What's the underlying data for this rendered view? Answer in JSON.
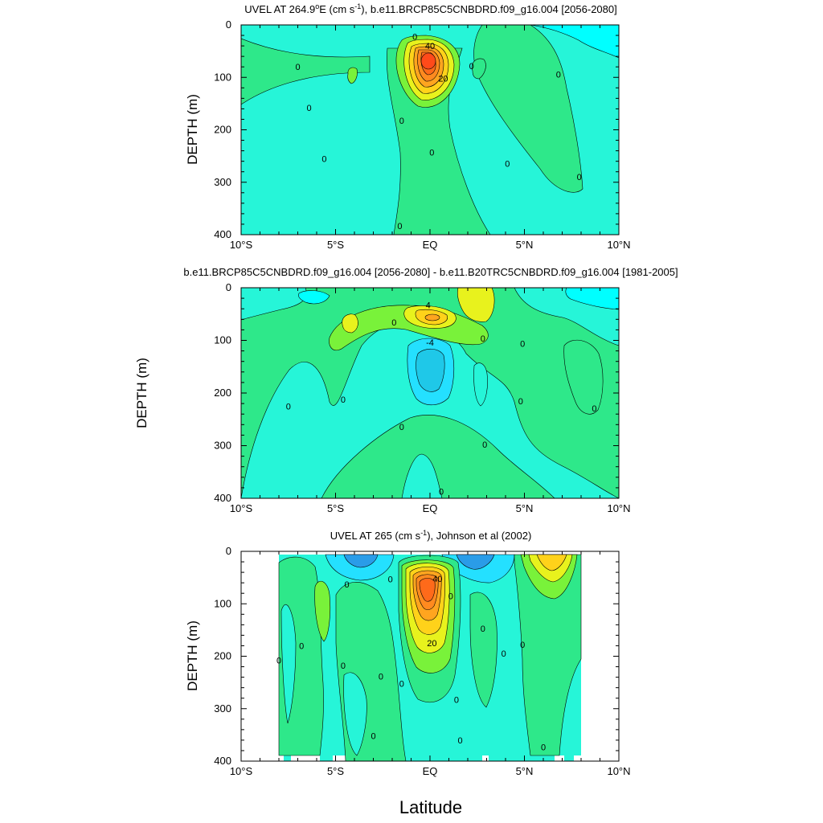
{
  "figure": {
    "xlabel": "Latitude"
  },
  "colors": {
    "contour_levels": [
      -20,
      -15,
      -10,
      -5,
      0,
      5,
      10,
      15,
      20,
      25,
      30,
      35,
      40,
      45,
      50
    ],
    "contour_fills": [
      "#1f78c8",
      "#2a9ce8",
      "#1fc8e8",
      "#24e0ff",
      "#00ffff",
      "#26f5d8",
      "#2ee88a",
      "#79f23a",
      "#e8f21d",
      "#ffd21a",
      "#ffa51f",
      "#ff8a1f",
      "#ff6a1a",
      "#ff4a1a",
      "#e8281a"
    ],
    "line": "#000000",
    "missing": "#ffffff"
  },
  "chart_data": [
    {
      "type": "contour",
      "title": "UVEL AT 264.9°E (cm s⁻¹), b.e11.BRCP85C5CNBDRD.f09_g16.004 [2056-2080]",
      "title_main": "UVEL AT 264.9",
      "title_deg": "o",
      "title_mid": "E (cm s",
      "title_sup": "-1",
      "title_end": "), b.e11.BRCP85C5CNBDRD.f09_g16.004 [2056-2080]",
      "ylabel": "DEPTH (m)",
      "xlim": [
        -10,
        10
      ],
      "ylim": [
        400,
        0
      ],
      "xticks": [
        -10,
        -5,
        0,
        5,
        10
      ],
      "xtick_labels": [
        "10°S",
        "5°S",
        "EQ",
        "5°N",
        "10°N"
      ],
      "yticks": [
        0,
        100,
        200,
        300,
        400
      ],
      "ytick_labels": [
        "0",
        "100",
        "200",
        "300",
        "400"
      ],
      "contour_labels": [
        {
          "x": -7.0,
          "y": 80,
          "text": "0"
        },
        {
          "x": -6.4,
          "y": 158,
          "text": "0"
        },
        {
          "x": -5.6,
          "y": 255,
          "text": "0"
        },
        {
          "x": -1.5,
          "y": 182,
          "text": "0"
        },
        {
          "x": -1.6,
          "y": 383,
          "text": "0"
        },
        {
          "x": 0.1,
          "y": 243,
          "text": "0"
        },
        {
          "x": -0.8,
          "y": 22,
          "text": "0"
        },
        {
          "x": 2.2,
          "y": 78,
          "text": "0"
        },
        {
          "x": 4.1,
          "y": 264,
          "text": "0"
        },
        {
          "x": 6.8,
          "y": 94,
          "text": "0"
        },
        {
          "x": 7.9,
          "y": 290,
          "text": "0"
        },
        {
          "x": 0.0,
          "y": 40,
          "text": "40"
        },
        {
          "x": 0.7,
          "y": 102,
          "text": "20"
        }
      ]
    },
    {
      "type": "contour",
      "title": "b.e11.BRCP85C5CNBDRD.f09_g16.004 [2056-2080] - b.e11.B20TRC5CNBDRD.f09_g16.004 [1981-2005]",
      "ylabel": "DEPTH (m)",
      "xlim": [
        -10,
        10
      ],
      "ylim": [
        400,
        0
      ],
      "xticks": [
        -10,
        -5,
        0,
        5,
        10
      ],
      "xtick_labels": [
        "10°S",
        "5°S",
        "EQ",
        "5°N",
        "10°N"
      ],
      "yticks": [
        0,
        100,
        200,
        300,
        400
      ],
      "ytick_labels": [
        "0",
        "100",
        "200",
        "300",
        "400"
      ],
      "contour_labels": [
        {
          "x": -7.5,
          "y": 225,
          "text": "0"
        },
        {
          "x": -4.6,
          "y": 212,
          "text": "0"
        },
        {
          "x": -1.9,
          "y": 66,
          "text": "0"
        },
        {
          "x": -1.5,
          "y": 264,
          "text": "0"
        },
        {
          "x": 0.6,
          "y": 387,
          "text": "0"
        },
        {
          "x": 2.8,
          "y": 96,
          "text": "0"
        },
        {
          "x": 2.9,
          "y": 298,
          "text": "0"
        },
        {
          "x": 4.9,
          "y": 106,
          "text": "0"
        },
        {
          "x": 4.8,
          "y": 215,
          "text": "0"
        },
        {
          "x": 8.7,
          "y": 229,
          "text": "0"
        },
        {
          "x": -0.1,
          "y": 33,
          "text": "4"
        },
        {
          "x": 0.0,
          "y": 104,
          "text": "-4"
        }
      ]
    },
    {
      "type": "contour",
      "title": "UVEL AT 265 (cm s⁻¹), Johnson et al (2002)",
      "title_main": "UVEL AT 265 (cm s",
      "title_sup": "-1",
      "title_end": "), Johnson et al (2002)",
      "ylabel": "DEPTH (m)",
      "xlim": [
        -10,
        10
      ],
      "ylim": [
        400,
        0
      ],
      "xticks": [
        -10,
        -5,
        0,
        5,
        10
      ],
      "xtick_labels": [
        "10°S",
        "5°S",
        "EQ",
        "5°N",
        "10°N"
      ],
      "yticks": [
        0,
        100,
        200,
        300,
        400
      ],
      "ytick_labels": [
        "0",
        "100",
        "200",
        "300",
        "400"
      ],
      "contour_labels": [
        {
          "x": -8.0,
          "y": 208,
          "text": "0"
        },
        {
          "x": -6.8,
          "y": 180,
          "text": "0"
        },
        {
          "x": -4.6,
          "y": 218,
          "text": "0"
        },
        {
          "x": -4.4,
          "y": 63,
          "text": "0"
        },
        {
          "x": -2.6,
          "y": 238,
          "text": "0"
        },
        {
          "x": -2.1,
          "y": 53,
          "text": "0"
        },
        {
          "x": -1.5,
          "y": 252,
          "text": "0"
        },
        {
          "x": -3.0,
          "y": 352,
          "text": "0"
        },
        {
          "x": 1.4,
          "y": 283,
          "text": "0"
        },
        {
          "x": 1.6,
          "y": 360,
          "text": "0"
        },
        {
          "x": 1.1,
          "y": 85,
          "text": "0"
        },
        {
          "x": 2.8,
          "y": 147,
          "text": "0"
        },
        {
          "x": 3.9,
          "y": 195,
          "text": "0"
        },
        {
          "x": 4.9,
          "y": 178,
          "text": "0"
        },
        {
          "x": 6.0,
          "y": 373,
          "text": "0"
        },
        {
          "x": 0.4,
          "y": 52,
          "text": "40"
        },
        {
          "x": 0.1,
          "y": 175,
          "text": "20"
        }
      ]
    }
  ]
}
